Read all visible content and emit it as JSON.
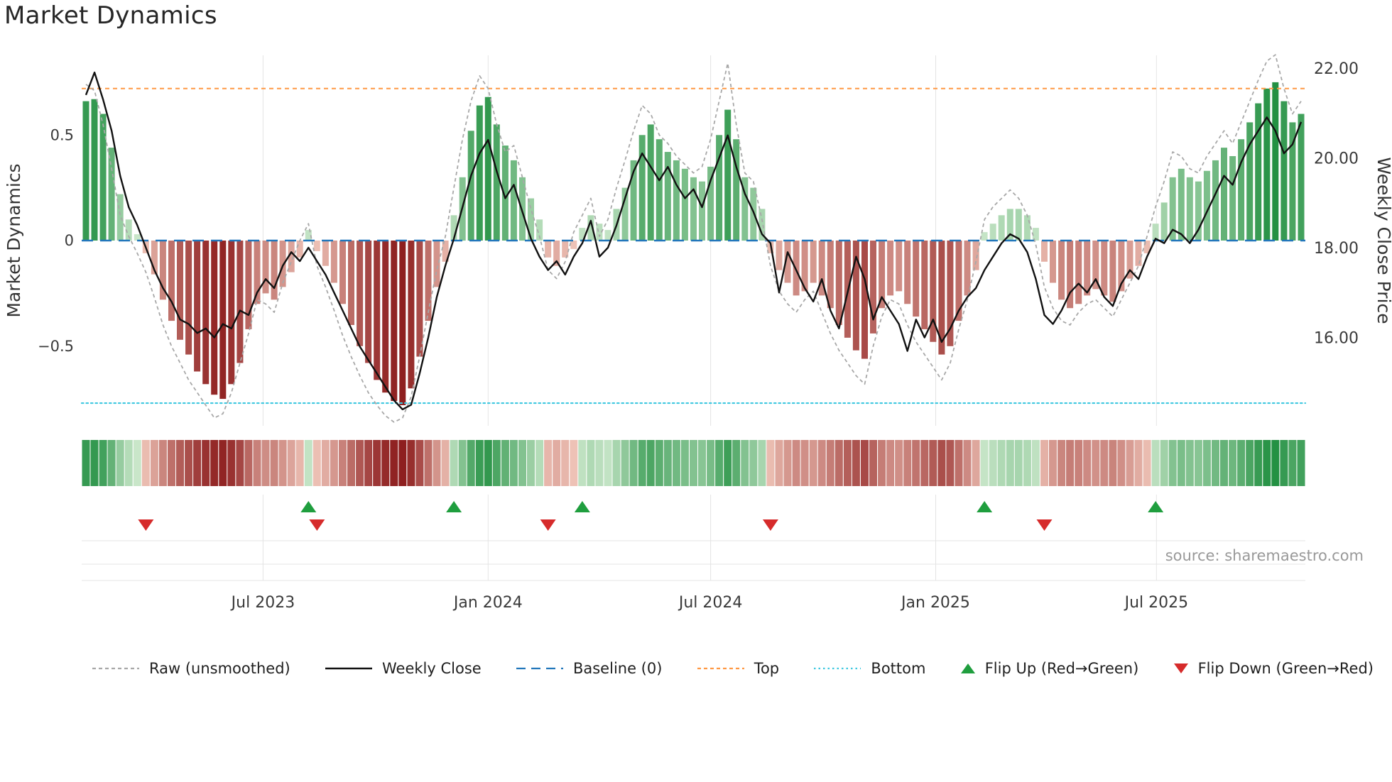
{
  "page": {
    "title": "Market Dynamics",
    "source": "source: sharemaestro.com"
  },
  "chart_data": {
    "type": "bar+line",
    "title": "Market Dynamics",
    "x_axis": {
      "start_week": "2023-02-06",
      "frequency": "weekly",
      "n_weeks": 143,
      "ticks": [
        {
          "label": "Jul 2023",
          "week": 20.7
        },
        {
          "label": "Jan 2024",
          "week": 47.0
        },
        {
          "label": "Jul 2024",
          "week": 73.0
        },
        {
          "label": "Jan 2025",
          "week": 99.3
        },
        {
          "label": "Jul 2025",
          "week": 125.1
        }
      ]
    },
    "left_axis": {
      "label": "Market Dynamics",
      "range": [
        -0.88,
        0.88
      ],
      "ticks": [
        {
          "label": "0.5",
          "value": 0.5
        },
        {
          "label": "0",
          "value": 0
        },
        {
          "label": "−0.5",
          "value": -0.5
        }
      ]
    },
    "right_axis": {
      "label": "Weekly Close Price",
      "range": [
        14.0,
        22.3
      ],
      "ticks": [
        {
          "label": "22.00",
          "value": 22
        },
        {
          "label": "20.00",
          "value": 20
        },
        {
          "label": "18.00",
          "value": 18
        },
        {
          "label": "16.00",
          "value": 16
        }
      ]
    },
    "reference_lines": {
      "baseline": 0,
      "top": 0.72,
      "bottom": -0.77
    },
    "series": {
      "dynamics": [
        0.66,
        0.67,
        0.6,
        0.44,
        0.22,
        0.1,
        0.03,
        -0.06,
        -0.16,
        -0.28,
        -0.38,
        -0.47,
        -0.54,
        -0.62,
        -0.68,
        -0.73,
        -0.75,
        -0.68,
        -0.58,
        -0.42,
        -0.3,
        -0.25,
        -0.28,
        -0.22,
        -0.15,
        -0.08,
        0.05,
        -0.05,
        -0.12,
        -0.2,
        -0.3,
        -0.4,
        -0.5,
        -0.58,
        -0.66,
        -0.72,
        -0.76,
        -0.78,
        -0.7,
        -0.55,
        -0.38,
        -0.22,
        -0.1,
        0.12,
        0.3,
        0.52,
        0.64,
        0.68,
        0.55,
        0.45,
        0.38,
        0.3,
        0.2,
        0.1,
        -0.08,
        -0.12,
        -0.08,
        -0.04,
        0.06,
        0.12,
        0.08,
        0.05,
        0.15,
        0.25,
        0.38,
        0.5,
        0.55,
        0.48,
        0.42,
        0.38,
        0.34,
        0.3,
        0.28,
        0.35,
        0.5,
        0.62,
        0.48,
        0.3,
        0.25,
        0.15,
        -0.06,
        -0.14,
        -0.2,
        -0.26,
        -0.24,
        -0.2,
        -0.26,
        -0.32,
        -0.4,
        -0.46,
        -0.52,
        -0.56,
        -0.44,
        -0.32,
        -0.26,
        -0.24,
        -0.3,
        -0.36,
        -0.42,
        -0.48,
        -0.54,
        -0.5,
        -0.38,
        -0.26,
        -0.14,
        0.04,
        0.08,
        0.12,
        0.15,
        0.15,
        0.12,
        0.06,
        -0.1,
        -0.2,
        -0.28,
        -0.32,
        -0.3,
        -0.26,
        -0.23,
        -0.26,
        -0.29,
        -0.24,
        -0.18,
        -0.12,
        -0.06,
        0.08,
        0.18,
        0.3,
        0.34,
        0.3,
        0.28,
        0.33,
        0.38,
        0.44,
        0.4,
        0.48,
        0.56,
        0.65,
        0.72,
        0.75,
        0.66,
        0.56,
        0.6
      ],
      "weekly_close": [
        21.4,
        21.9,
        21.3,
        20.6,
        19.6,
        18.9,
        18.5,
        18.0,
        17.5,
        17.1,
        16.8,
        16.4,
        16.3,
        16.1,
        16.2,
        16.0,
        16.3,
        16.2,
        16.6,
        16.5,
        17.0,
        17.3,
        17.1,
        17.6,
        17.9,
        17.7,
        18.0,
        17.7,
        17.4,
        17.0,
        16.6,
        16.2,
        15.8,
        15.5,
        15.2,
        14.9,
        14.6,
        14.4,
        14.5,
        15.2,
        16.0,
        16.9,
        17.6,
        18.2,
        18.9,
        19.6,
        20.1,
        20.4,
        19.7,
        19.1,
        19.4,
        18.8,
        18.2,
        17.8,
        17.5,
        17.7,
        17.4,
        17.8,
        18.1,
        18.6,
        17.8,
        18.0,
        18.5,
        19.1,
        19.7,
        20.1,
        19.8,
        19.5,
        19.8,
        19.4,
        19.1,
        19.3,
        18.9,
        19.5,
        20.0,
        20.5,
        19.8,
        19.2,
        18.8,
        18.3,
        18.1,
        17.0,
        17.9,
        17.5,
        17.1,
        16.8,
        17.3,
        16.6,
        16.2,
        17.0,
        17.8,
        17.3,
        16.4,
        16.9,
        16.6,
        16.3,
        15.7,
        16.4,
        16.0,
        16.4,
        15.9,
        16.2,
        16.6,
        16.9,
        17.1,
        17.5,
        17.8,
        18.1,
        18.3,
        18.2,
        17.9,
        17.3,
        16.5,
        16.3,
        16.6,
        17.0,
        17.2,
        17.0,
        17.3,
        16.9,
        16.7,
        17.2,
        17.5,
        17.3,
        17.8,
        18.2,
        18.1,
        18.4,
        18.3,
        18.1,
        18.4,
        18.8,
        19.2,
        19.6,
        19.4,
        19.9,
        20.3,
        20.6,
        20.9,
        20.6,
        20.1,
        20.3,
        20.8
      ],
      "raw": [
        0.74,
        0.71,
        0.55,
        0.34,
        0.12,
        0.02,
        -0.06,
        -0.15,
        -0.27,
        -0.4,
        -0.5,
        -0.58,
        -0.66,
        -0.72,
        -0.78,
        -0.84,
        -0.82,
        -0.72,
        -0.58,
        -0.44,
        -0.28,
        -0.3,
        -0.34,
        -0.2,
        -0.1,
        0.0,
        0.08,
        -0.12,
        -0.22,
        -0.33,
        -0.45,
        -0.55,
        -0.64,
        -0.72,
        -0.78,
        -0.83,
        -0.86,
        -0.84,
        -0.74,
        -0.55,
        -0.34,
        -0.14,
        0.02,
        0.25,
        0.48,
        0.66,
        0.78,
        0.72,
        0.55,
        0.42,
        0.45,
        0.3,
        0.15,
        0.02,
        -0.14,
        -0.18,
        -0.1,
        0.04,
        0.12,
        0.2,
        0.02,
        0.1,
        0.25,
        0.38,
        0.52,
        0.64,
        0.6,
        0.5,
        0.46,
        0.4,
        0.36,
        0.32,
        0.35,
        0.48,
        0.66,
        0.84,
        0.55,
        0.32,
        0.28,
        0.1,
        -0.12,
        -0.24,
        -0.3,
        -0.34,
        -0.28,
        -0.24,
        -0.34,
        -0.44,
        -0.52,
        -0.58,
        -0.64,
        -0.68,
        -0.5,
        -0.36,
        -0.28,
        -0.3,
        -0.4,
        -0.48,
        -0.54,
        -0.6,
        -0.66,
        -0.58,
        -0.42,
        -0.28,
        -0.1,
        0.1,
        0.16,
        0.2,
        0.24,
        0.2,
        0.12,
        -0.02,
        -0.22,
        -0.32,
        -0.38,
        -0.4,
        -0.34,
        -0.3,
        -0.28,
        -0.32,
        -0.36,
        -0.28,
        -0.2,
        -0.12,
        0.02,
        0.16,
        0.28,
        0.42,
        0.4,
        0.34,
        0.32,
        0.4,
        0.46,
        0.52,
        0.46,
        0.56,
        0.66,
        0.76,
        0.85,
        0.88,
        0.72,
        0.6,
        0.66
      ]
    },
    "flip_up_weeks": [
      26,
      43,
      58,
      105,
      125
    ],
    "flip_down_weeks": [
      7,
      27,
      54,
      80,
      112
    ],
    "heatmap": "same values as series.dynamics, rendered as color strip",
    "legend_position": "bottom",
    "grid": "light vertical gridlines at x ticks"
  },
  "legend": {
    "items": [
      {
        "key": "raw",
        "label": "Raw (unsmoothed)",
        "swatch": "dashed-line",
        "color": "#a8a8a8"
      },
      {
        "key": "weekly_close",
        "label": "Weekly Close",
        "swatch": "solid-line",
        "color": "#111111"
      },
      {
        "key": "baseline",
        "label": "Baseline (0)",
        "swatch": "long-dash-line",
        "color": "#2277bb"
      },
      {
        "key": "top",
        "label": "Top",
        "swatch": "dashed-line",
        "color": "#ff9944"
      },
      {
        "key": "bottom",
        "label": "Bottom",
        "swatch": "dotted-line",
        "color": "#3fc8e0"
      },
      {
        "key": "flip_up",
        "label": "Flip Up (Red→Green)",
        "swatch": "triangle-up",
        "color": "#1f9e3e"
      },
      {
        "key": "flip_down",
        "label": "Flip Down (Green→Red)",
        "swatch": "triangle-down",
        "color": "#d62b2b"
      }
    ]
  },
  "colors": {
    "bar_pos_light": "#d4ecd2",
    "bar_pos_dark": "#1e8e3e",
    "bar_neg_light": "#f6d0c3",
    "bar_neg_dark": "#8e1f1f",
    "baseline": "#2277bb",
    "top": "#ff9944",
    "bottom": "#3fc8e0",
    "raw": "#a8a8a8",
    "close": "#111111",
    "flip_up": "#1f9e3e",
    "flip_down": "#d62b2b",
    "grid": "#e4e4e4",
    "tick_text": "#3a3a3a",
    "axis_label_text": "#333333",
    "source_text": "#999999"
  }
}
